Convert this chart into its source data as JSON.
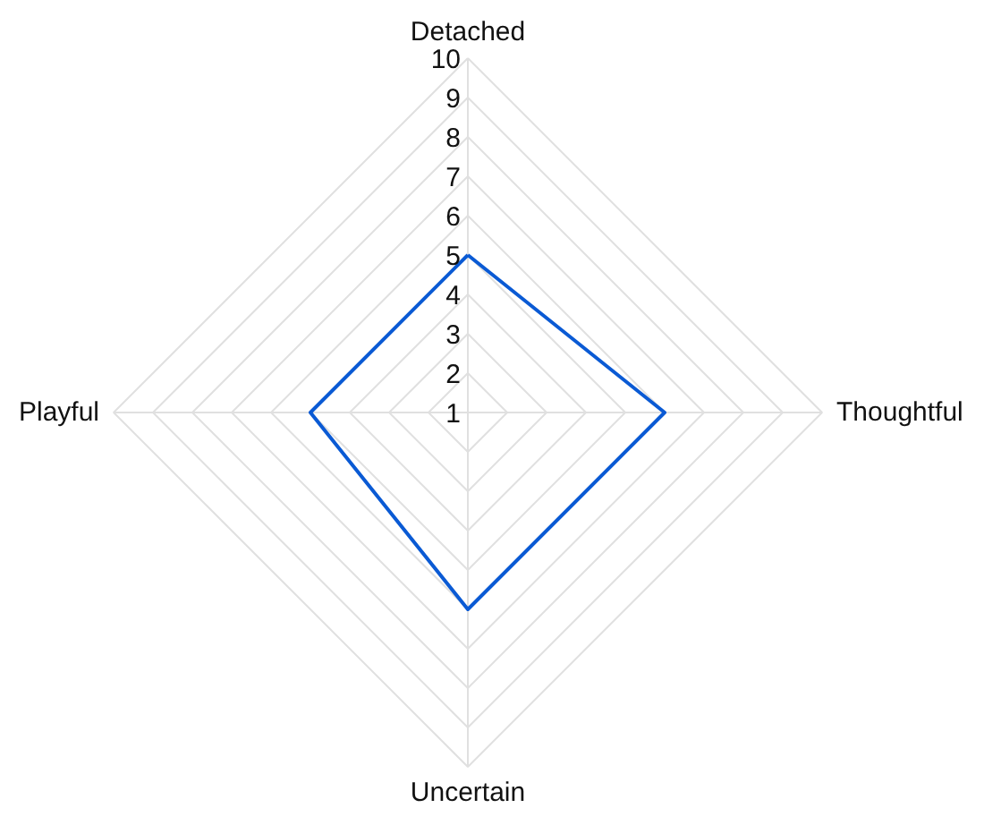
{
  "chart_data": {
    "type": "radar",
    "categories": [
      "Detached",
      "Thoughtful",
      "Uncertain",
      "Playful"
    ],
    "series": [
      {
        "color": "#0a5ad4",
        "values": [
          5,
          6,
          6,
          5
        ]
      }
    ],
    "ylim": [
      1,
      10
    ],
    "yticks": [
      1,
      2,
      3,
      4,
      5,
      6,
      7,
      8,
      9,
      10
    ],
    "grid": true,
    "marker": "none",
    "line_style": "solid"
  }
}
